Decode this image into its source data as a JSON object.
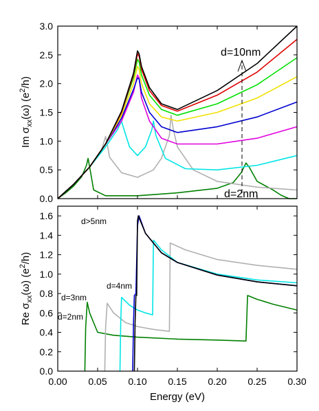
{
  "chart_data": [
    {
      "type": "line",
      "ylabel": {
        "prefix": "Im σ",
        "sub": "xx",
        "mid": "(ω) (e",
        "sup": "2",
        "suffix": "/h)"
      },
      "xlim": [
        0.0,
        0.3
      ],
      "ylim": [
        0.0,
        3.0
      ],
      "yticks": [
        "0.0",
        "0.5",
        "1.0",
        "1.5",
        "2.0",
        "2.5",
        "3.0"
      ],
      "annotations": [
        {
          "text": "d=10nm"
        },
        {
          "text": "d=2nm"
        }
      ],
      "series": [
        {
          "color": "#008000",
          "points": [
            [
              0,
              0
            ],
            [
              0.01,
              0.1
            ],
            [
              0.02,
              0.22
            ],
            [
              0.03,
              0.38
            ],
            [
              0.036,
              0.58
            ],
            [
              0.038,
              0.7
            ],
            [
              0.04,
              0.55
            ],
            [
              0.045,
              0.15
            ],
            [
              0.06,
              0.05
            ],
            [
              0.1,
              0.05
            ],
            [
              0.15,
              0.1
            ],
            [
              0.2,
              0.18
            ],
            [
              0.22,
              0.28
            ],
            [
              0.23,
              0.45
            ],
            [
              0.236,
              0.62
            ],
            [
              0.24,
              0.55
            ],
            [
              0.25,
              0.3
            ],
            [
              0.27,
              0.15
            ],
            [
              0.28,
              0.06
            ],
            [
              0.29,
              0.0
            ],
            [
              0.3,
              -0.05
            ]
          ]
        },
        {
          "color": "#b0b0b0",
          "points": [
            [
              0,
              0
            ],
            [
              0.02,
              0.25
            ],
            [
              0.04,
              0.55
            ],
            [
              0.055,
              0.85
            ],
            [
              0.06,
              1.08
            ],
            [
              0.062,
              0.95
            ],
            [
              0.065,
              0.72
            ],
            [
              0.08,
              0.45
            ],
            [
              0.1,
              0.37
            ],
            [
              0.12,
              0.5
            ],
            [
              0.13,
              0.7
            ],
            [
              0.14,
              1.1
            ],
            [
              0.142,
              1.45
            ],
            [
              0.145,
              1.2
            ],
            [
              0.15,
              0.9
            ],
            [
              0.17,
              0.5
            ],
            [
              0.2,
              0.3
            ],
            [
              0.25,
              0.2
            ],
            [
              0.3,
              0.15
            ]
          ]
        },
        {
          "color": "#00e5e5",
          "points": [
            [
              0,
              0
            ],
            [
              0.02,
              0.25
            ],
            [
              0.04,
              0.55
            ],
            [
              0.06,
              0.9
            ],
            [
              0.075,
              1.2
            ],
            [
              0.08,
              1.35
            ],
            [
              0.082,
              1.25
            ],
            [
              0.09,
              0.9
            ],
            [
              0.1,
              0.75
            ],
            [
              0.11,
              0.9
            ],
            [
              0.118,
              1.2
            ],
            [
              0.12,
              1.35
            ],
            [
              0.123,
              1.1
            ],
            [
              0.135,
              0.7
            ],
            [
              0.16,
              0.52
            ],
            [
              0.2,
              0.5
            ],
            [
              0.25,
              0.58
            ],
            [
              0.3,
              0.75
            ]
          ]
        },
        {
          "color": "#e000e0",
          "points": [
            [
              0,
              0
            ],
            [
              0.02,
              0.25
            ],
            [
              0.04,
              0.55
            ],
            [
              0.06,
              0.95
            ],
            [
              0.08,
              1.35
            ],
            [
              0.095,
              1.85
            ],
            [
              0.1,
              2.15
            ],
            [
              0.102,
              2.1
            ],
            [
              0.105,
              1.75
            ],
            [
              0.115,
              1.35
            ],
            [
              0.13,
              1.05
            ],
            [
              0.15,
              0.95
            ],
            [
              0.2,
              0.95
            ],
            [
              0.25,
              1.05
            ],
            [
              0.3,
              1.25
            ]
          ]
        },
        {
          "color": "#0000d0",
          "points": [
            [
              0,
              0
            ],
            [
              0.02,
              0.25
            ],
            [
              0.04,
              0.55
            ],
            [
              0.06,
              0.95
            ],
            [
              0.08,
              1.4
            ],
            [
              0.095,
              1.9
            ],
            [
              0.1,
              2.1
            ],
            [
              0.102,
              2.08
            ],
            [
              0.105,
              1.85
            ],
            [
              0.115,
              1.5
            ],
            [
              0.13,
              1.25
            ],
            [
              0.15,
              1.15
            ],
            [
              0.2,
              1.25
            ],
            [
              0.25,
              1.42
            ],
            [
              0.3,
              1.68
            ]
          ]
        },
        {
          "color": "#f0e000",
          "points": [
            [
              0,
              0
            ],
            [
              0.02,
              0.25
            ],
            [
              0.04,
              0.55
            ],
            [
              0.06,
              0.95
            ],
            [
              0.08,
              1.45
            ],
            [
              0.095,
              2.0
            ],
            [
              0.1,
              2.3
            ],
            [
              0.102,
              2.25
            ],
            [
              0.105,
              2.0
            ],
            [
              0.115,
              1.65
            ],
            [
              0.13,
              1.42
            ],
            [
              0.15,
              1.35
            ],
            [
              0.2,
              1.5
            ],
            [
              0.25,
              1.75
            ],
            [
              0.3,
              2.12
            ]
          ]
        },
        {
          "color": "#00e000",
          "points": [
            [
              0,
              0
            ],
            [
              0.02,
              0.25
            ],
            [
              0.04,
              0.55
            ],
            [
              0.06,
              0.95
            ],
            [
              0.08,
              1.5
            ],
            [
              0.095,
              2.1
            ],
            [
              0.1,
              2.42
            ],
            [
              0.102,
              2.38
            ],
            [
              0.105,
              2.15
            ],
            [
              0.115,
              1.8
            ],
            [
              0.13,
              1.55
            ],
            [
              0.15,
              1.45
            ],
            [
              0.2,
              1.65
            ],
            [
              0.25,
              1.98
            ],
            [
              0.3,
              2.45
            ]
          ]
        },
        {
          "color": "#e00000",
          "points": [
            [
              0,
              0
            ],
            [
              0.02,
              0.25
            ],
            [
              0.04,
              0.55
            ],
            [
              0.06,
              0.95
            ],
            [
              0.08,
              1.5
            ],
            [
              0.095,
              2.15
            ],
            [
              0.1,
              2.52
            ],
            [
              0.102,
              2.48
            ],
            [
              0.105,
              2.25
            ],
            [
              0.115,
              1.88
            ],
            [
              0.13,
              1.62
            ],
            [
              0.15,
              1.52
            ],
            [
              0.2,
              1.8
            ],
            [
              0.25,
              2.2
            ],
            [
              0.3,
              2.77
            ]
          ]
        },
        {
          "color": "#000000",
          "points": [
            [
              0,
              0
            ],
            [
              0.02,
              0.25
            ],
            [
              0.04,
              0.55
            ],
            [
              0.06,
              0.95
            ],
            [
              0.08,
              1.52
            ],
            [
              0.095,
              2.18
            ],
            [
              0.1,
              2.57
            ],
            [
              0.102,
              2.52
            ],
            [
              0.105,
              2.3
            ],
            [
              0.115,
              1.93
            ],
            [
              0.13,
              1.65
            ],
            [
              0.15,
              1.55
            ],
            [
              0.2,
              1.88
            ],
            [
              0.25,
              2.35
            ],
            [
              0.3,
              3.0
            ]
          ]
        }
      ]
    },
    {
      "type": "line",
      "ylabel": {
        "prefix": "Re σ",
        "sub": "xx",
        "mid": "(ω) (e",
        "sup": "2",
        "suffix": "/h)"
      },
      "xlabel": "Energy (eV)",
      "xlim": [
        0.0,
        0.3
      ],
      "ylim": [
        0.0,
        1.7
      ],
      "xticks": [
        "0.00",
        "0.05",
        "0.10",
        "0.15",
        "0.20",
        "0.25",
        "0.30"
      ],
      "yticks": [
        "0.0",
        "0.2",
        "0.4",
        "0.6",
        "0.8",
        "1.0",
        "1.2",
        "1.4",
        "1.6"
      ],
      "annotations": [
        {
          "text": "d>5nm"
        },
        {
          "text": "d=4nm"
        },
        {
          "text": "d=3nm"
        },
        {
          "text": "d=2nm"
        }
      ],
      "series": [
        {
          "color": "#008000",
          "points": [
            [
              0.034,
              0.0
            ],
            [
              0.035,
              0.45
            ],
            [
              0.037,
              0.71
            ],
            [
              0.04,
              0.6
            ],
            [
              0.05,
              0.4
            ],
            [
              0.07,
              0.37
            ],
            [
              0.1,
              0.35
            ],
            [
              0.15,
              0.33
            ],
            [
              0.2,
              0.32
            ],
            [
              0.236,
              0.31
            ],
            [
              0.238,
              0.78
            ],
            [
              0.25,
              0.74
            ],
            [
              0.27,
              0.69
            ],
            [
              0.3,
              0.63
            ]
          ]
        },
        {
          "color": "#b0b0b0",
          "points": [
            [
              0.059,
              0.0
            ],
            [
              0.06,
              0.45
            ],
            [
              0.062,
              0.7
            ],
            [
              0.07,
              0.6
            ],
            [
              0.085,
              0.5
            ],
            [
              0.1,
              0.46
            ],
            [
              0.12,
              0.43
            ],
            [
              0.14,
              0.41
            ],
            [
              0.141,
              1.32
            ],
            [
              0.16,
              1.25
            ],
            [
              0.2,
              1.15
            ],
            [
              0.25,
              1.09
            ],
            [
              0.3,
              1.05
            ]
          ]
        },
        {
          "color": "#00e5e5",
          "points": [
            [
              0.078,
              0.0
            ],
            [
              0.079,
              0.5
            ],
            [
              0.08,
              0.76
            ],
            [
              0.09,
              0.68
            ],
            [
              0.1,
              0.63
            ],
            [
              0.11,
              0.6
            ],
            [
              0.119,
              0.58
            ],
            [
              0.12,
              1.35
            ],
            [
              0.13,
              1.25
            ],
            [
              0.15,
              1.12
            ],
            [
              0.2,
              1.0
            ],
            [
              0.25,
              0.94
            ],
            [
              0.3,
              0.91
            ]
          ]
        },
        {
          "color": "#0000d0",
          "points": [
            [
              0.094,
              0.0
            ],
            [
              0.095,
              0.5
            ],
            [
              0.096,
              0.78
            ],
            [
              0.098,
              0.8
            ],
            [
              0.1,
              1.5
            ],
            [
              0.102,
              1.6
            ],
            [
              0.11,
              1.42
            ],
            [
              0.13,
              1.22
            ],
            [
              0.15,
              1.12
            ],
            [
              0.2,
              0.99
            ],
            [
              0.25,
              0.92
            ],
            [
              0.3,
              0.88
            ]
          ]
        },
        {
          "color": "#000000",
          "points": [
            [
              0.096,
              0.0
            ],
            [
              0.097,
              0.5
            ],
            [
              0.098,
              0.78
            ],
            [
              0.099,
              0.78
            ],
            [
              0.1,
              1.55
            ],
            [
              0.101,
              1.6
            ],
            [
              0.11,
              1.42
            ],
            [
              0.13,
              1.22
            ],
            [
              0.15,
              1.12
            ],
            [
              0.2,
              0.99
            ],
            [
              0.25,
              0.92
            ],
            [
              0.3,
              0.88
            ]
          ]
        }
      ]
    }
  ]
}
